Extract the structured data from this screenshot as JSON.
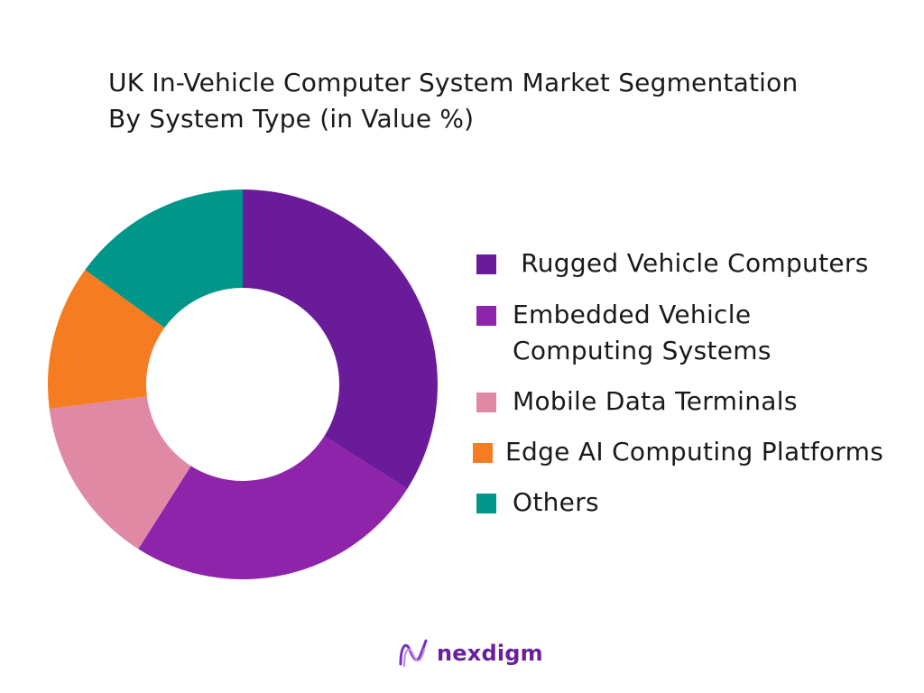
{
  "chart_data": {
    "type": "pie",
    "title": "UK In-Vehicle Computer System Market Segmentation",
    "subtitle": "By System Type  (in Value %)",
    "donut": true,
    "categories": [
      "Rugged Vehicle Computers",
      "Embedded Vehicle Computing Systems",
      "Mobile Data Terminals",
      "Edge AI Computing Platforms",
      "Others"
    ],
    "values": [
      34,
      25,
      14,
      12,
      15
    ],
    "colors": [
      "#6a1b9a",
      "#8e24aa",
      "#df89a5",
      "#f57c21",
      "#00968a"
    ],
    "legend": "right"
  },
  "legend": {
    "items": [
      {
        "label": " Rugged Vehicle Computers",
        "color": "#6a1b9a"
      },
      {
        "label": "Embedded Vehicle Computing Systems",
        "color": "#8e24aa"
      },
      {
        "label": "Mobile Data Terminals",
        "color": "#df89a5"
      },
      {
        "label": "Edge AI Computing Platforms",
        "color": "#f57c21"
      },
      {
        "label": "Others",
        "color": "#00968a"
      }
    ]
  },
  "logo": {
    "text": "nexdigm",
    "icon": "nexdigm-logo-icon"
  }
}
